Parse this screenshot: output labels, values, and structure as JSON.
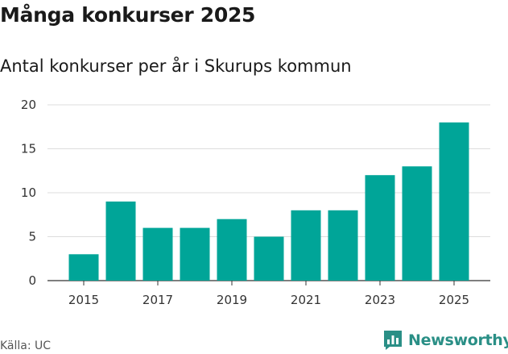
{
  "chart_data": {
    "type": "bar",
    "title": "Många konkurser 2025",
    "subtitle": "Antal konkurser per år i Skurups kommun",
    "categories": [
      "2015",
      "2016",
      "2017",
      "2018",
      "2019",
      "2020",
      "2021",
      "2022",
      "2023",
      "2024",
      "2025"
    ],
    "values": [
      3,
      9,
      6,
      6,
      7,
      5,
      8,
      8,
      12,
      13,
      18
    ],
    "x_tick_labels": [
      "2015",
      "2017",
      "2019",
      "2021",
      "2023",
      "2025"
    ],
    "y_tick_labels": [
      "0",
      "5",
      "10",
      "15",
      "20"
    ],
    "y_ticks": [
      0,
      5,
      10,
      15,
      20
    ],
    "ylim": [
      0,
      20
    ],
    "xlabel": "",
    "ylabel": "",
    "grid": true,
    "bar_color": "#00a598"
  },
  "footer": {
    "source": "Källa: UC",
    "brand": "Newsworthy",
    "brand_color": "#2a8f86",
    "brand_icon": "bar-chart-icon"
  }
}
